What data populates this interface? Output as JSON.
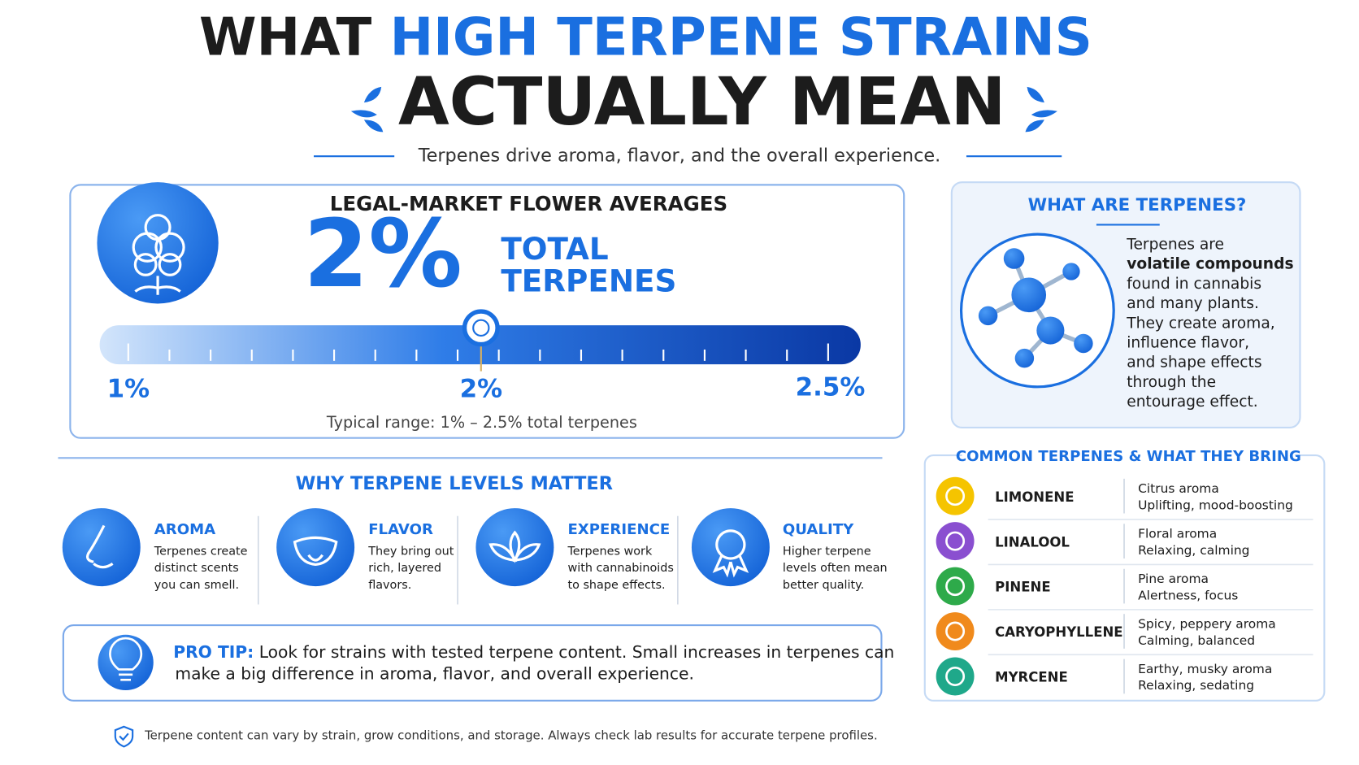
{
  "header": {
    "title_part1": "WHAT",
    "title_highlight": "HIGH TERPENE STRAINS",
    "title_line2": "ACTUALLY MEAN",
    "subtitle": "Terpenes drive aroma, flavor, and the overall experience."
  },
  "averages": {
    "heading": "LEGAL-MARKET FLOWER AVERAGES",
    "value": "2%",
    "label_line1": "TOTAL",
    "label_line2": "TERPENES",
    "scale_min": "1%",
    "scale_mid": "2%",
    "scale_max": "2.5%",
    "range_note": "Typical range: 1% – 2.5% total terpenes"
  },
  "what_are": {
    "heading": "WHAT ARE TERPENES?",
    "lines": [
      "Terpenes are",
      "volatile compounds",
      "found in cannabis",
      "and many plants.",
      "They create aroma,",
      "influence flavor,",
      "and shape effects",
      "through the",
      "entourage effect."
    ]
  },
  "why": {
    "heading": "WHY TERPENE LEVELS MATTER",
    "items": [
      {
        "title": "AROMA",
        "lines": [
          "Terpenes create",
          "distinct scents",
          "you can smell."
        ]
      },
      {
        "title": "FLAVOR",
        "lines": [
          "They bring out",
          "rich, layered",
          "flavors."
        ]
      },
      {
        "title": "EXPERIENCE",
        "lines": [
          "Terpenes work",
          "with cannabinoids",
          "to shape effects."
        ]
      },
      {
        "title": "QUALITY",
        "lines": [
          "Higher terpene",
          "levels often mean",
          "better quality."
        ]
      }
    ]
  },
  "pro_tip": {
    "label": "PRO TIP:",
    "lines": [
      "Look for strains with tested terpene content. Small increases in terpenes can",
      "make a big difference in aroma, flavor, and overall experience."
    ]
  },
  "common": {
    "heading": "COMMON TERPENES & WHAT THEY BRING",
    "rows": [
      {
        "name": "LIMONENE",
        "aroma": "Citrus aroma",
        "effect": "Uplifting, mood-boosting"
      },
      {
        "name": "LINALOOL",
        "aroma": "Floral aroma",
        "effect": "Relaxing, calming"
      },
      {
        "name": "PINENE",
        "aroma": "Pine aroma",
        "effect": "Alertness, focus"
      },
      {
        "name": "CARYOPHYLLENE",
        "aroma": "Spicy, peppery aroma",
        "effect": "Calming, balanced"
      },
      {
        "name": "MYRCENE",
        "aroma": "Earthy, musky aroma",
        "effect": "Relaxing, sedating"
      }
    ]
  },
  "footer": {
    "note": "Terpene content can vary by strain, grow conditions, and storage. Always check lab results for accurate terpene profiles."
  }
}
